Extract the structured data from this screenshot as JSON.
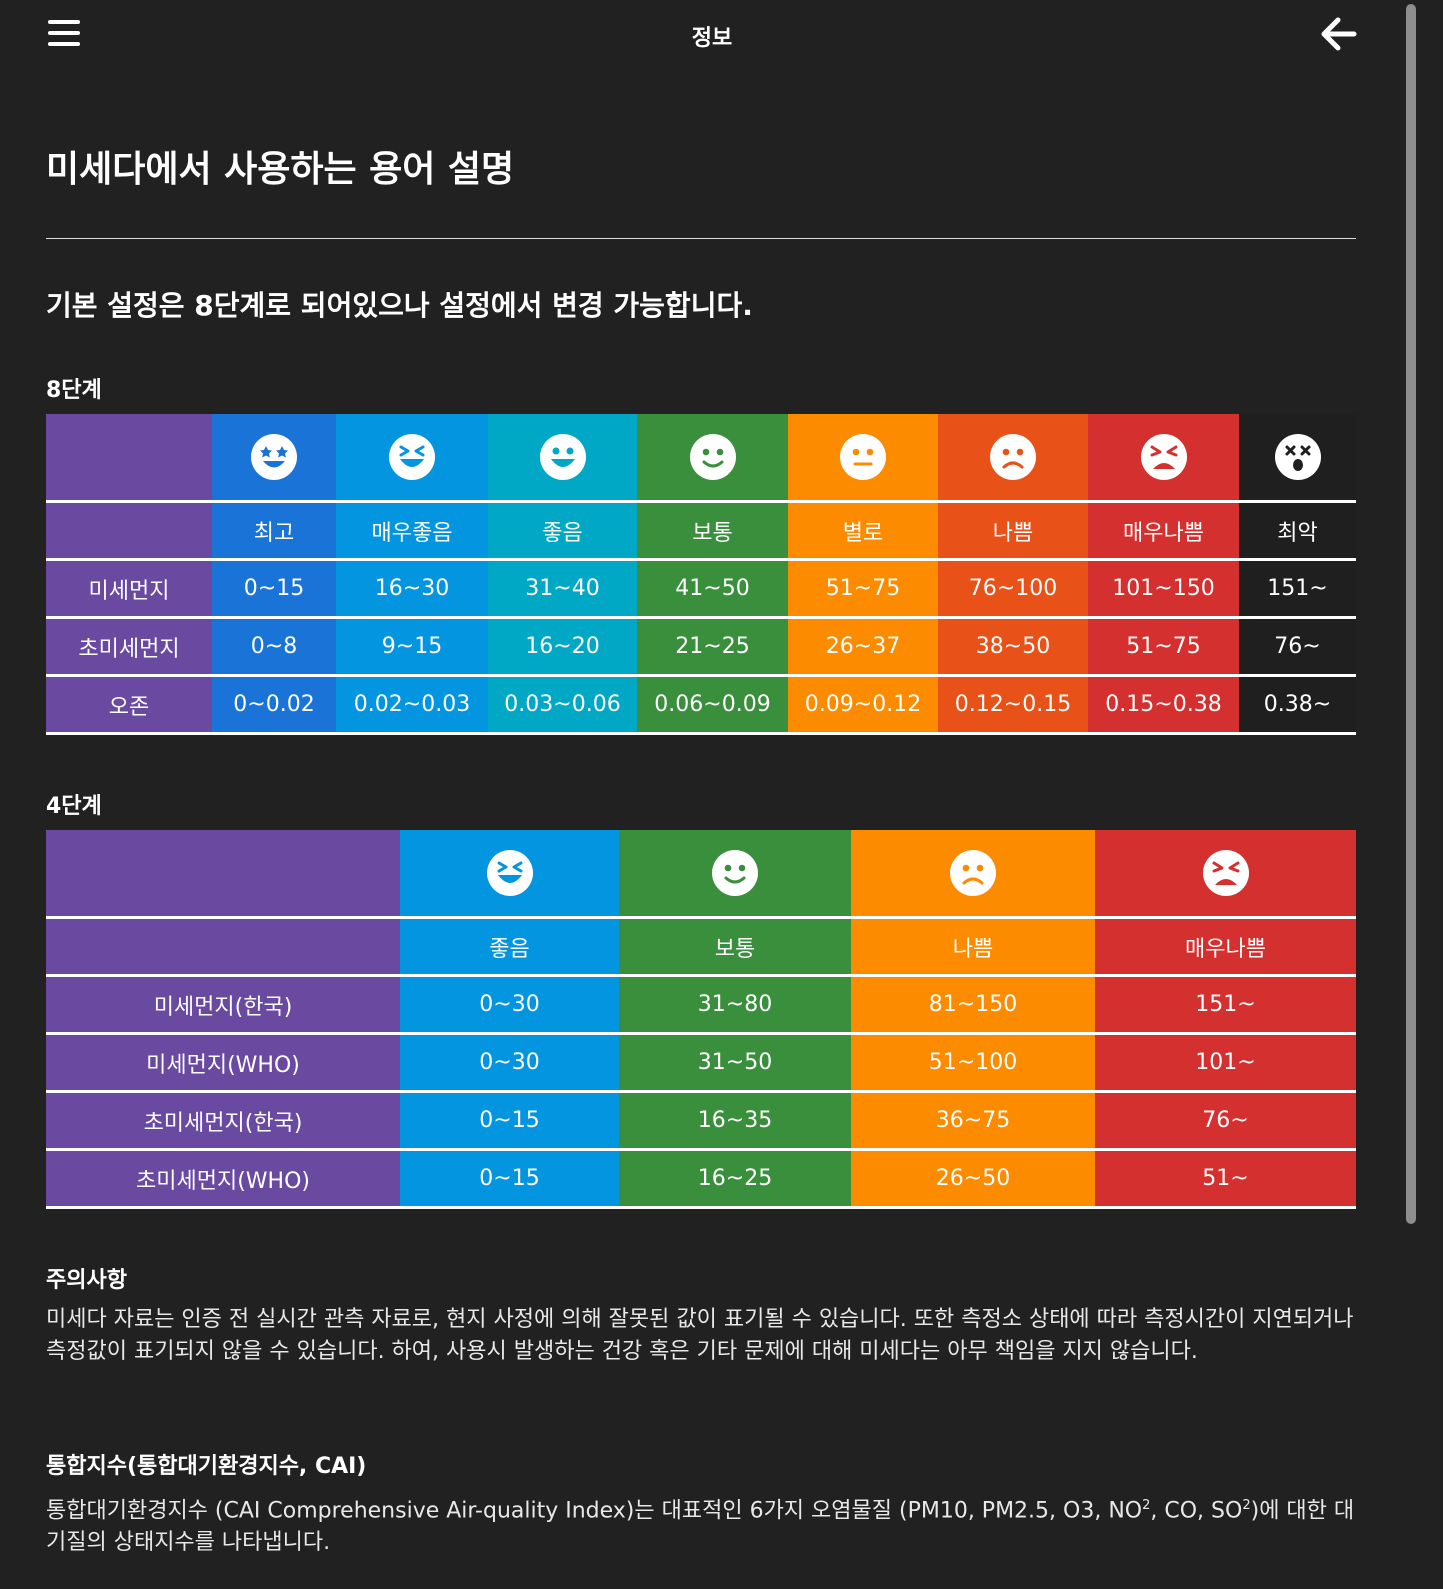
{
  "header": {
    "title": "정보"
  },
  "page": {
    "title": "미세다에서 사용하는 용어 설명",
    "subtitle": "기본 설정은 8단계로 되어있으나 설정에서 변경 가능합니다."
  },
  "grade8": {
    "label": "8단계",
    "levels": [
      {
        "name": "최고",
        "color": "#1a73d6",
        "icon": "star-eyes-face-icon"
      },
      {
        "name": "매우좋음",
        "color": "#0395e0",
        "icon": "laughing-face-icon"
      },
      {
        "name": "좋음",
        "color": "#00a8c6",
        "icon": "grinning-face-icon"
      },
      {
        "name": "보통",
        "color": "#3a8f3d",
        "icon": "smiling-face-icon"
      },
      {
        "name": "별로",
        "color": "#fd8b00",
        "icon": "neutral-face-icon"
      },
      {
        "name": "나쁨",
        "color": "#e85118",
        "icon": "frowning-face-icon"
      },
      {
        "name": "매우나쁨",
        "color": "#d3302f",
        "icon": "angry-face-icon"
      },
      {
        "name": "최악",
        "color": "#1f1f1f",
        "icon": "dizzy-face-icon"
      }
    ],
    "rows": [
      {
        "label": "미세먼지",
        "values": [
          "0~15",
          "16~30",
          "31~40",
          "41~50",
          "51~75",
          "76~100",
          "101~150",
          "151~"
        ]
      },
      {
        "label": "초미세먼지",
        "values": [
          "0~8",
          "9~15",
          "16~20",
          "21~25",
          "26~37",
          "38~50",
          "51~75",
          "76~"
        ]
      },
      {
        "label": "오존",
        "values": [
          "0~0.02",
          "0.02~0.03",
          "0.03~0.06",
          "0.06~0.09",
          "0.09~0.12",
          "0.12~0.15",
          "0.15~0.38",
          "0.38~"
        ]
      }
    ]
  },
  "grade4": {
    "label": "4단계",
    "levels": [
      {
        "name": "좋음",
        "color": "#0395e0",
        "icon": "laughing-face-icon"
      },
      {
        "name": "보통",
        "color": "#3a8f3d",
        "icon": "smiling-face-icon"
      },
      {
        "name": "나쁨",
        "color": "#fd8b00",
        "icon": "frowning-face-icon"
      },
      {
        "name": "매우나쁨",
        "color": "#d3302f",
        "icon": "angry-face-icon"
      }
    ],
    "rows": [
      {
        "label": "미세먼지(한국)",
        "values": [
          "0~30",
          "31~80",
          "81~150",
          "151~"
        ]
      },
      {
        "label": "미세먼지(WHO)",
        "values": [
          "0~30",
          "31~50",
          "51~100",
          "101~"
        ]
      },
      {
        "label": "초미세먼지(한국)",
        "values": [
          "0~15",
          "16~35",
          "36~75",
          "76~"
        ]
      },
      {
        "label": "초미세먼지(WHO)",
        "values": [
          "0~15",
          "16~25",
          "26~50",
          "51~"
        ]
      }
    ]
  },
  "notice": {
    "title": "주의사항",
    "body": "미세다 자료는 인증 전 실시간 관측 자료로, 현지 사정에 의해 잘못된 값이 표기될 수 있습니다. 또한 측정소 상태에 따라 측정시간이 지연되거나 측정값이 표기되지 않을 수 있습니다. 하여, 사용시 발생하는 건강 혹은 기타 문제에 대해 미세다는 아무 책임을 지지 않습니다."
  },
  "cai": {
    "title": "통합지수(통합대기환경지수, CAI)",
    "body_pre": "통합대기환경지수 (CAI Comprehensive Air-quality Index)는 대표적인 6가지 오염물질 (PM10, PM2.5, O3, NO",
    "sup1": "2",
    "body_mid": ", CO, SO",
    "sup2": "2",
    "body_post": ")에 대한 대기질의 상태지수를 나타냅니다."
  },
  "colors": {
    "background": "#212121",
    "row_header": "#6a4aa0"
  }
}
